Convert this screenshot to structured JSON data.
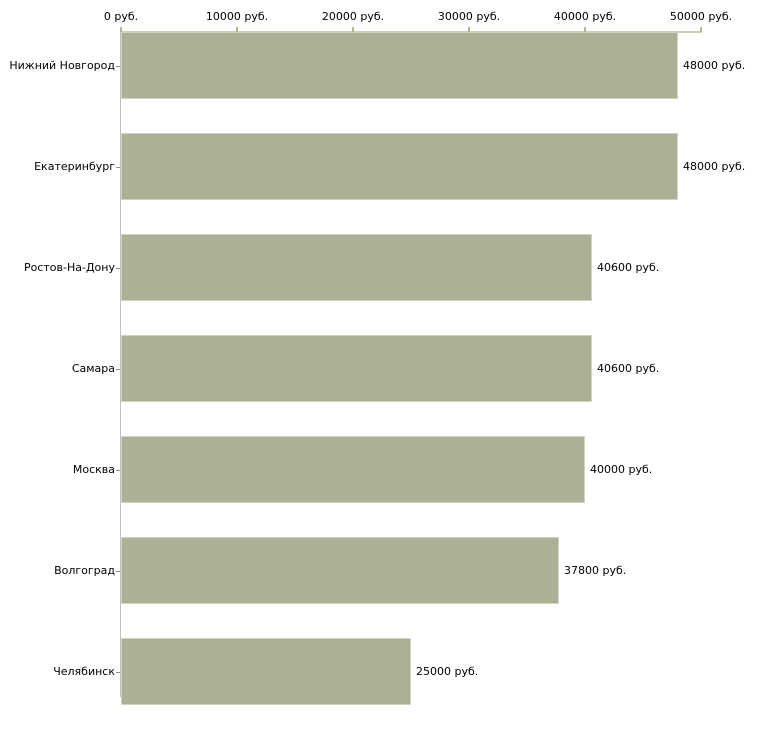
{
  "chart_data": {
    "type": "bar",
    "orientation": "horizontal",
    "title": "",
    "unit": "руб.",
    "grid": false,
    "legend": false,
    "categories": [
      "Нижний Новгород",
      "Екатеринбург",
      "Ростов-На-Дону",
      "Самара",
      "Москва",
      "Волгоград",
      "Челябинск"
    ],
    "values": [
      48000,
      48000,
      40600,
      40600,
      40000,
      37800,
      25000
    ],
    "value_labels": [
      "48000 руб.",
      "48000 руб.",
      "40600 руб.",
      "40600 руб.",
      "40000 руб.",
      "37800 руб.",
      "25000 руб."
    ],
    "x_axis": {
      "position": "top",
      "xlim": [
        0,
        50000
      ],
      "ticks": [
        {
          "value": 0,
          "label": "0 руб."
        },
        {
          "value": 10000,
          "label": "10000 руб."
        },
        {
          "value": 20000,
          "label": "20000 руб."
        },
        {
          "value": 30000,
          "label": "30000 руб."
        },
        {
          "value": 40000,
          "label": "40000 руб."
        },
        {
          "value": 50000,
          "label": "50000 руб."
        }
      ]
    },
    "colors": {
      "bar": "#acb095",
      "bar_border": "#d2d4c2",
      "axis_line": "#cdcfb6",
      "tick_mark": "#b2b493",
      "category_tick": "#8f9183",
      "y_axis_line": "#c0c0c0",
      "text": "#000000",
      "background": "#ffffff"
    }
  }
}
